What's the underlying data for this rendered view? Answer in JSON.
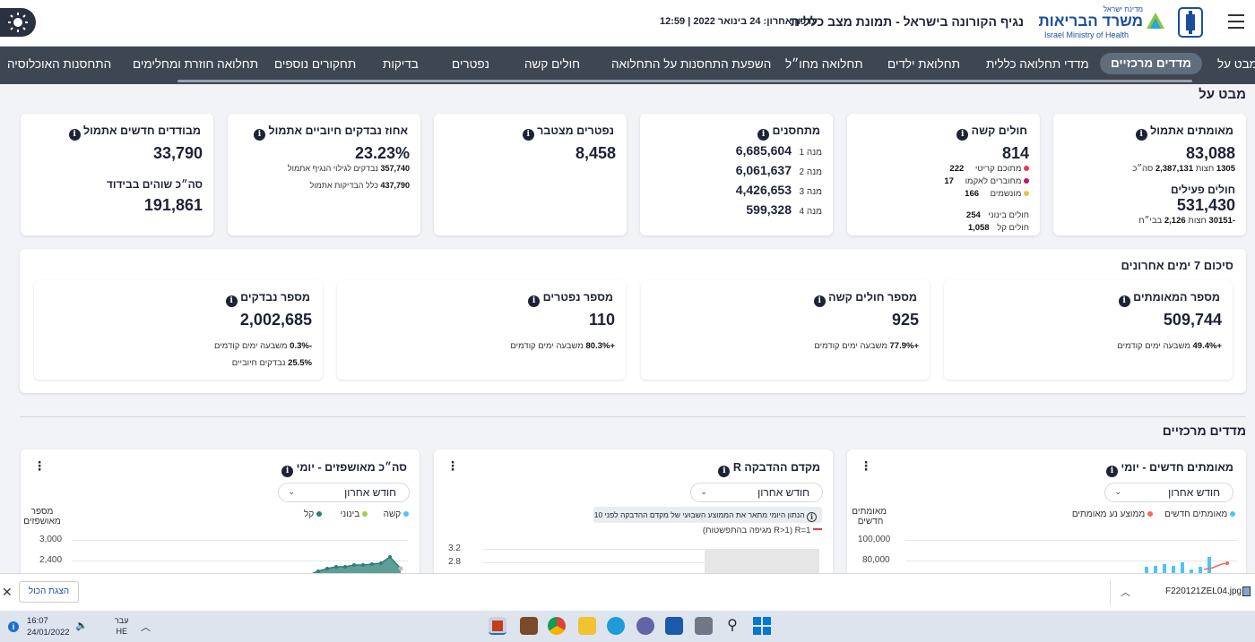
{
  "header": {
    "title": "נגיף הקורונה בישראל - תמונת מצב כללית",
    "updated": "עדכון אחרון: 24 בינואר 2022 | 12:59",
    "logo_top": "מדינת ישראל",
    "logo_main": "משרד הבריאות",
    "logo_en": "Israel Ministry of Health"
  },
  "nav": {
    "items": [
      "מבט על",
      "מדדים מרכזיים",
      "מדדי תחלואה כללית",
      "תחלואת ילדים",
      "תחלואה מחו״ל",
      "השפעת התחסנות על התחלואה",
      "חולים קשה",
      "נפטרים",
      "בדיקות",
      "תחקורים נוספים",
      "תחלואה חוזרת ומחלימים",
      "התחסנות האוכלוסיה"
    ]
  },
  "overview": {
    "title": "מבט על",
    "confirmed": {
      "title": "מאומתים אתמול",
      "value": "83,088",
      "mid_label": "חצות",
      "mid_value": "1305",
      "total_label": "סה״כ",
      "total_value": "2,387,131",
      "active_title": "חולים פעילים",
      "active_value": "531,430",
      "active_mid": "-30151",
      "active_mid_label": "חצות",
      "active_h_value": "2,126",
      "active_h_label": "בבי״ח"
    },
    "severe": {
      "title": "חולים קשה",
      "value": "814",
      "rows": [
        {
          "label": "מתוכם קריטי",
          "value": "222"
        },
        {
          "label": "מחוברים לאקמו",
          "value": "17"
        },
        {
          "label": "מונשמים",
          "value": "166"
        }
      ],
      "moderate_label": "חולים בינוני",
      "moderate_value": "254",
      "mild_label": "חולים קל",
      "mild_value": "1,058"
    },
    "vaccinated": {
      "title": "מתחסנים",
      "doses": [
        {
          "label": "מנה 1",
          "value": "6,685,604"
        },
        {
          "label": "מנה 2",
          "value": "6,061,637"
        },
        {
          "label": "מנה 3",
          "value": "4,426,653"
        },
        {
          "label": "מנה 4",
          "value": "599,328"
        }
      ]
    },
    "deaths": {
      "title": "נפטרים מצטבר",
      "value": "8,458"
    },
    "positive": {
      "title": "אחוז נבדקים חיוביים אתמול",
      "value": "23.23%",
      "l1_label": "נבדקים לגילוי הנגיף אתמול",
      "l1_value": "357,740",
      "l2_label": "כלל הבדיקות אתמול",
      "l2_value": "437,790"
    },
    "isolated": {
      "title": "מבודדים חדשים אתמול",
      "value": "33,790",
      "sub_title": "סה״כ שוהים בבידוד",
      "sub_value": "191,861"
    }
  },
  "week": {
    "title": "סיכום 7 ימים אחרונים",
    "cards": [
      {
        "title": "מספר המאומתים",
        "value": "509,744",
        "change": "+49.4%",
        "change_label": "משבעה ימים קודמים"
      },
      {
        "title": "מספר חולים קשה",
        "value": "925",
        "change": "+77.9%",
        "change_label": "משבעה ימים קודמים"
      },
      {
        "title": "מספר נפטרים",
        "value": "110",
        "change": "+80.3%",
        "change_label": "משבעה ימים קודמים"
      },
      {
        "title": "מספר נבדקים",
        "value": "2,002,685",
        "change": "-0.3%",
        "change_label": "משבעה ימים קודמים",
        "extra_value": "25.5%",
        "extra_label": "נבדקים חיוביים"
      }
    ]
  },
  "key": {
    "title": "מדדים מרכזיים",
    "chart1": {
      "title": "מאומתים חדשים - יומי",
      "dropdown": "חודש אחרון",
      "legend": [
        "מאומתים חדשים",
        "ממוצע נע מאומתים"
      ],
      "ylabel": "מאומתים חדשים",
      "yticks": [
        "100,000",
        "80,000"
      ],
      "colors": [
        "#4fc3f7",
        "#f26b5b"
      ]
    },
    "chart2": {
      "title": "מקדם ההדבקה R",
      "dropdown": "חודש אחרון",
      "note": "הנתון היומי מתאר את הממוצע השבועי של מקדם ההדבקה לפני 10 ימים",
      "legend": "R=1 (R>1 מגיפה בהתפשטות)",
      "yticks": [
        "3.2",
        "2.8"
      ]
    },
    "chart3": {
      "title": "סה״כ מאושפזים - יומי",
      "dropdown": "חודש אחרון",
      "legend": [
        "קשה",
        "בינוני",
        "קל"
      ],
      "ylabel": "מספר מאושפזים",
      "yticks": [
        "3,000",
        "2,400"
      ],
      "colors": [
        "#4fc3f7",
        "#a8c94a",
        "#2f7d78"
      ]
    }
  },
  "download": {
    "file": "F220121ZEL04.jpg",
    "show_all": "הצגת הכול"
  },
  "taskbar": {
    "time": "16:07",
    "date": "24/01/2022",
    "lang": "עבר",
    "lang2": "HE"
  }
}
